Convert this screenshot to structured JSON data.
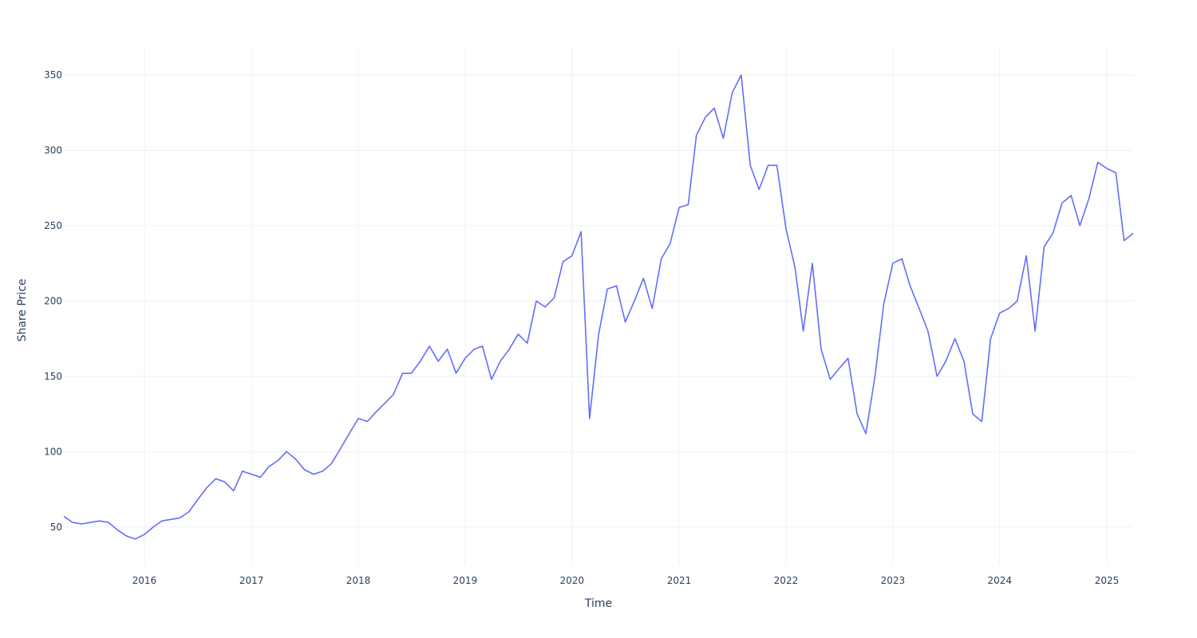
{
  "chart_data": {
    "type": "line",
    "xlabel": "Time",
    "ylabel": "Share Price",
    "xlim": [
      "2015-04-01",
      "2025-04-01"
    ],
    "ylim": [
      25,
      368
    ],
    "x_ticks": [
      "2016",
      "2017",
      "2018",
      "2019",
      "2020",
      "2021",
      "2022",
      "2023",
      "2024",
      "2025"
    ],
    "y_ticks": [
      50,
      100,
      150,
      200,
      250,
      300,
      350
    ],
    "grid": true,
    "line_color": "#636efa",
    "series": [
      {
        "name": "",
        "points": [
          [
            "2015-04-01",
            57
          ],
          [
            "2015-05-01",
            53
          ],
          [
            "2015-06-01",
            52
          ],
          [
            "2015-07-01",
            53
          ],
          [
            "2015-08-01",
            54
          ],
          [
            "2015-09-01",
            53
          ],
          [
            "2015-10-01",
            48
          ],
          [
            "2015-11-01",
            44
          ],
          [
            "2015-12-01",
            42
          ],
          [
            "2016-01-01",
            45
          ],
          [
            "2016-02-01",
            50
          ],
          [
            "2016-03-01",
            54
          ],
          [
            "2016-04-01",
            55
          ],
          [
            "2016-05-01",
            56
          ],
          [
            "2016-06-01",
            60
          ],
          [
            "2016-07-01",
            68
          ],
          [
            "2016-08-01",
            76
          ],
          [
            "2016-09-01",
            82
          ],
          [
            "2016-10-01",
            80
          ],
          [
            "2016-11-01",
            74
          ],
          [
            "2016-12-01",
            87
          ],
          [
            "2017-01-01",
            85
          ],
          [
            "2017-02-01",
            83
          ],
          [
            "2017-03-01",
            90
          ],
          [
            "2017-04-01",
            94
          ],
          [
            "2017-05-01",
            100
          ],
          [
            "2017-06-01",
            95
          ],
          [
            "2017-07-01",
            88
          ],
          [
            "2017-08-01",
            85
          ],
          [
            "2017-09-01",
            87
          ],
          [
            "2017-10-01",
            92
          ],
          [
            "2017-11-01",
            102
          ],
          [
            "2017-12-01",
            112
          ],
          [
            "2018-01-01",
            122
          ],
          [
            "2018-02-01",
            120
          ],
          [
            "2018-03-01",
            126
          ],
          [
            "2018-04-01",
            132
          ],
          [
            "2018-05-01",
            138
          ],
          [
            "2018-06-01",
            152
          ],
          [
            "2018-07-01",
            152
          ],
          [
            "2018-08-01",
            160
          ],
          [
            "2018-09-01",
            170
          ],
          [
            "2018-10-01",
            160
          ],
          [
            "2018-11-01",
            168
          ],
          [
            "2018-12-01",
            152
          ],
          [
            "2019-01-01",
            162
          ],
          [
            "2019-02-01",
            168
          ],
          [
            "2019-03-01",
            170
          ],
          [
            "2019-04-01",
            148
          ],
          [
            "2019-05-01",
            160
          ],
          [
            "2019-06-01",
            168
          ],
          [
            "2019-07-01",
            178
          ],
          [
            "2019-08-01",
            172
          ],
          [
            "2019-09-01",
            200
          ],
          [
            "2019-10-01",
            196
          ],
          [
            "2019-11-01",
            202
          ],
          [
            "2019-12-01",
            226
          ],
          [
            "2020-01-01",
            230
          ],
          [
            "2020-02-01",
            246
          ],
          [
            "2020-03-01",
            122
          ],
          [
            "2020-04-01",
            178
          ],
          [
            "2020-05-01",
            208
          ],
          [
            "2020-06-01",
            210
          ],
          [
            "2020-07-01",
            186
          ],
          [
            "2020-08-01",
            200
          ],
          [
            "2020-09-01",
            215
          ],
          [
            "2020-10-01",
            195
          ],
          [
            "2020-11-01",
            228
          ],
          [
            "2020-12-01",
            238
          ],
          [
            "2021-01-01",
            262
          ],
          [
            "2021-02-01",
            264
          ],
          [
            "2021-03-01",
            310
          ],
          [
            "2021-04-01",
            322
          ],
          [
            "2021-05-01",
            328
          ],
          [
            "2021-06-01",
            308
          ],
          [
            "2021-07-01",
            338
          ],
          [
            "2021-08-01",
            350
          ],
          [
            "2021-09-01",
            290
          ],
          [
            "2021-10-01",
            274
          ],
          [
            "2021-11-01",
            290
          ],
          [
            "2021-12-01",
            290
          ],
          [
            "2022-01-01",
            248
          ],
          [
            "2022-02-01",
            222
          ],
          [
            "2022-03-01",
            180
          ],
          [
            "2022-04-01",
            225
          ],
          [
            "2022-05-01",
            168
          ],
          [
            "2022-06-01",
            148
          ],
          [
            "2022-07-01",
            155
          ],
          [
            "2022-08-01",
            162
          ],
          [
            "2022-09-01",
            125
          ],
          [
            "2022-10-01",
            112
          ],
          [
            "2022-11-01",
            150
          ],
          [
            "2022-12-01",
            198
          ],
          [
            "2023-01-01",
            225
          ],
          [
            "2023-02-01",
            228
          ],
          [
            "2023-03-01",
            210
          ],
          [
            "2023-04-01",
            195
          ],
          [
            "2023-05-01",
            180
          ],
          [
            "2023-06-01",
            150
          ],
          [
            "2023-07-01",
            160
          ],
          [
            "2023-08-01",
            175
          ],
          [
            "2023-09-01",
            160
          ],
          [
            "2023-10-01",
            125
          ],
          [
            "2023-11-01",
            120
          ],
          [
            "2023-12-01",
            175
          ],
          [
            "2024-01-01",
            192
          ],
          [
            "2024-02-01",
            195
          ],
          [
            "2024-03-01",
            200
          ],
          [
            "2024-04-01",
            230
          ],
          [
            "2024-05-01",
            180
          ],
          [
            "2024-06-01",
            236
          ],
          [
            "2024-07-01",
            245
          ],
          [
            "2024-08-01",
            265
          ],
          [
            "2024-09-01",
            270
          ],
          [
            "2024-10-01",
            250
          ],
          [
            "2024-11-01",
            268
          ],
          [
            "2024-12-01",
            292
          ],
          [
            "2025-01-01",
            288
          ],
          [
            "2025-02-01",
            285
          ],
          [
            "2025-03-01",
            240
          ],
          [
            "2025-04-01",
            245
          ]
        ]
      }
    ]
  }
}
